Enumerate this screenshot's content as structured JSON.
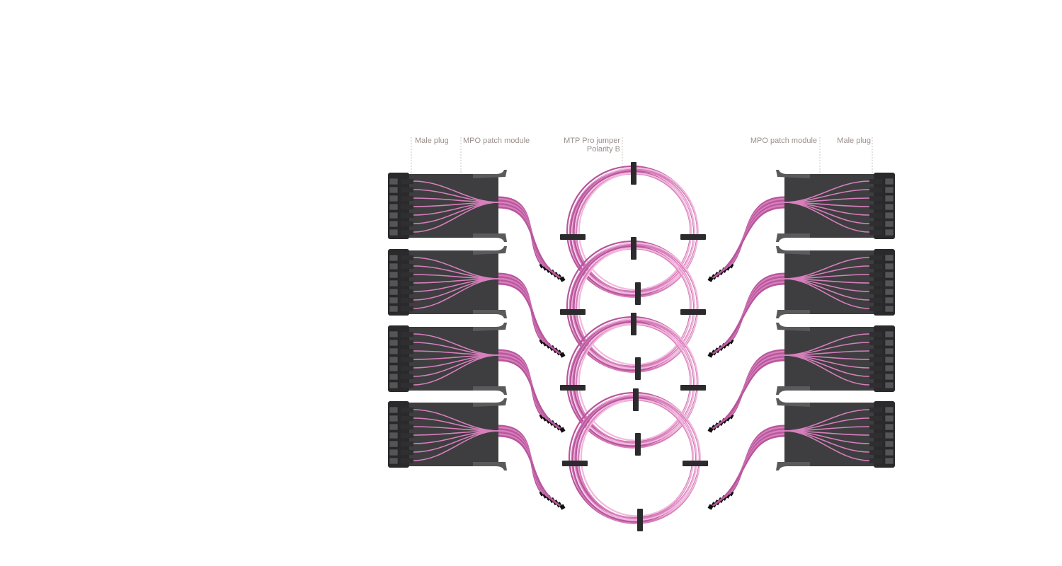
{
  "labels": {
    "male_plug_left": "Male plug",
    "mpo_module_left": "MPO patch module",
    "jumper_line1": "MTP Pro jumper",
    "jumper_line2": "Polarity B",
    "mpo_module_right": "MPO patch module",
    "male_plug_right": "Male plug"
  },
  "colors": {
    "fiber": "#d77fbc",
    "fiber_dark": "#b8569c",
    "fiber_light": "#f2b8dc",
    "module_body": "#3e3e40",
    "module_dark": "#2a2a2c",
    "module_edge": "#5a5a5c",
    "clip": "#2b2b2d",
    "leader_line": "#cfc6c2"
  },
  "icons": {
    "module": "mpo-patch-module-icon",
    "coil": "fiber-coil-icon",
    "connector": "male-plug-connector-icon"
  }
}
